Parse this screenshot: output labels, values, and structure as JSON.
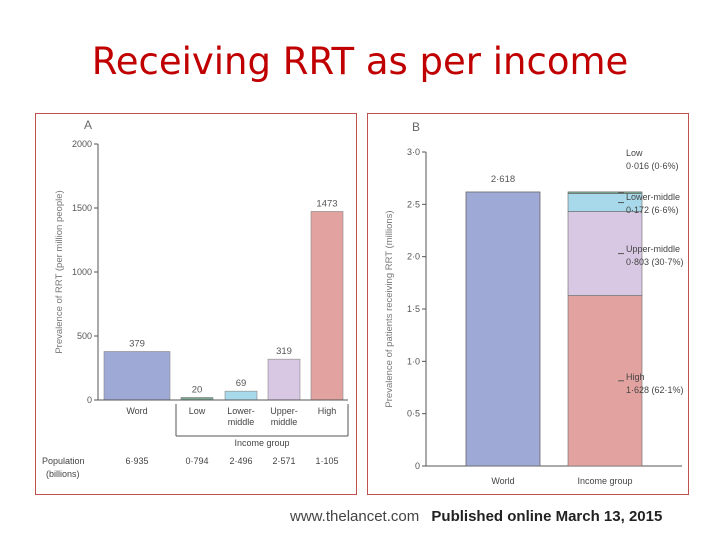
{
  "title": "Receiving RRT as per income",
  "footer": {
    "site": "www.thelancet.com",
    "published": "Published online March 13, 2015"
  },
  "colors": {
    "world": "#9ea9d6",
    "low": "#7aa894",
    "lower_middle": "#a7d9ea",
    "upper_middle": "#d9c8e3",
    "high": "#e1a2a0",
    "title": "#c00000"
  },
  "chart_data": [
    {
      "panel": "A",
      "type": "bar",
      "ylabel": "Prevalence of RRT (per million people)",
      "xlabel": "Income group",
      "ylim": [
        0,
        2000
      ],
      "yticks": [
        "0",
        "500",
        "1000",
        "1500",
        "2000"
      ],
      "categories": [
        "Word",
        "Low",
        "Lower-middle",
        "Upper-middle",
        "High"
      ],
      "category_lines": [
        [
          "Word"
        ],
        [
          "Low"
        ],
        [
          "Lower-",
          "middle"
        ],
        [
          "Upper-",
          "middle"
        ],
        [
          "High"
        ]
      ],
      "values": [
        379,
        20,
        69,
        319,
        1473
      ],
      "value_labels": [
        "379",
        "20",
        "69",
        "319",
        "1473"
      ],
      "population_label": [
        "Population",
        "(billions)"
      ],
      "population": [
        "6·935",
        "0·794",
        "2·496",
        "2·571",
        "1·105"
      ]
    },
    {
      "panel": "B",
      "type": "bar",
      "stacked": true,
      "ylabel": "Prevalence of patients receiving RRT (millions)",
      "ylim": [
        0,
        3.0
      ],
      "yticks": [
        "0",
        "0·5",
        "1·0",
        "1·5",
        "2·0",
        "2·5",
        "3·0"
      ],
      "categories": [
        "World",
        "Income group"
      ],
      "world": {
        "value": 2.618,
        "label": "2·618"
      },
      "segments": [
        {
          "name": "High",
          "value": 1.628,
          "label": "1·628 (62·1%)"
        },
        {
          "name": "Upper-middle",
          "value": 0.803,
          "label": "0·803 (30·7%)"
        },
        {
          "name": "Lower-middle",
          "value": 0.172,
          "label": "0·172 (6·6%)"
        },
        {
          "name": "Low",
          "value": 0.016,
          "label": "0·016 (0·6%)"
        }
      ]
    }
  ]
}
